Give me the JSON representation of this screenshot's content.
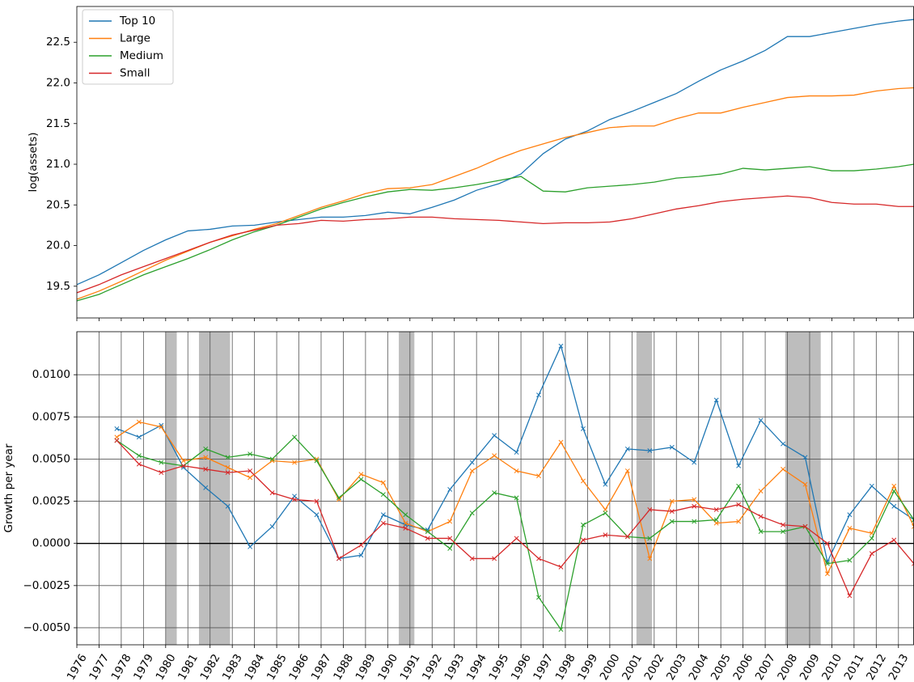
{
  "chart_data": [
    {
      "type": "line",
      "ylabel": "log(assets)",
      "legend": "upper left",
      "grid": false,
      "x": [
        1976,
        1977,
        1978,
        1979,
        1980,
        1981,
        1982,
        1983,
        1984,
        1985,
        1986,
        1987,
        1988,
        1989,
        1990,
        1991,
        1992,
        1993,
        1994,
        1995,
        1996,
        1997,
        1998,
        1999,
        2000,
        2001,
        2002,
        2003,
        2004,
        2005,
        2006,
        2007,
        2008,
        2009,
        2010,
        2011,
        2012,
        2013,
        2013.7
      ],
      "xlim": [
        1976,
        2013.7
      ],
      "xticks": [
        1976,
        1977,
        1978,
        1979,
        1980,
        1981,
        1982,
        1983,
        1984,
        1985,
        1986,
        1987,
        1988,
        1989,
        1990,
        1991,
        1992,
        1993,
        1994,
        1995,
        1996,
        1997,
        1998,
        1999,
        2000,
        2001,
        2002,
        2003,
        2004,
        2005,
        2006,
        2007,
        2008,
        2009,
        2010,
        2011,
        2012,
        2013
      ],
      "ylim": [
        19.11,
        22.94
      ],
      "yticks": [
        19.5,
        {
          "value": 20,
          "label": "20.0"
        },
        20.5,
        {
          "value": 21,
          "label": "21.0"
        },
        21.5,
        {
          "value": 22,
          "label": "22.0"
        },
        22.5
      ],
      "series": [
        {
          "name": "Top 10",
          "color": "#1f77b4",
          "values": [
            19.52,
            19.64,
            19.79,
            19.94,
            20.07,
            20.18,
            20.2,
            20.24,
            20.25,
            20.29,
            20.32,
            20.35,
            20.35,
            20.37,
            20.41,
            20.39,
            20.47,
            20.56,
            20.68,
            20.76,
            20.88,
            21.13,
            21.31,
            21.41,
            21.55,
            21.65,
            21.76,
            21.87,
            22.02,
            22.16,
            22.27,
            22.4,
            22.57,
            22.57,
            22.62,
            22.67,
            22.72,
            22.76,
            22.78
          ]
        },
        {
          "name": "Large",
          "color": "#ff7f0e",
          "values": [
            19.34,
            19.44,
            19.56,
            19.69,
            19.82,
            19.93,
            20.04,
            20.12,
            20.2,
            20.27,
            20.37,
            20.47,
            20.55,
            20.64,
            20.7,
            20.71,
            20.75,
            20.85,
            20.95,
            21.07,
            21.17,
            21.25,
            21.33,
            21.39,
            21.45,
            21.47,
            21.47,
            21.56,
            21.63,
            21.63,
            21.7,
            21.76,
            21.82,
            21.84,
            21.84,
            21.85,
            21.9,
            21.93,
            21.94
          ]
        },
        {
          "name": "Medium",
          "color": "#2ca02c",
          "values": [
            19.32,
            19.4,
            19.52,
            19.64,
            19.74,
            19.84,
            19.95,
            20.07,
            20.17,
            20.25,
            20.35,
            20.45,
            20.53,
            20.6,
            20.66,
            20.69,
            20.68,
            20.71,
            20.75,
            20.8,
            20.85,
            20.67,
            20.66,
            20.71,
            20.73,
            20.75,
            20.78,
            20.83,
            20.85,
            20.88,
            20.95,
            20.93,
            20.95,
            20.97,
            20.92,
            20.92,
            20.94,
            20.97,
            21.0
          ]
        },
        {
          "name": "Small",
          "color": "#d62728",
          "values": [
            19.42,
            19.52,
            19.64,
            19.74,
            19.84,
            19.94,
            20.04,
            20.13,
            20.19,
            20.25,
            20.27,
            20.31,
            20.3,
            20.32,
            20.33,
            20.35,
            20.35,
            20.33,
            20.32,
            20.31,
            20.29,
            20.27,
            20.28,
            20.28,
            20.29,
            20.33,
            20.39,
            20.45,
            20.49,
            20.54,
            20.57,
            20.59,
            20.61,
            20.59,
            20.53,
            20.51,
            20.51,
            20.48,
            20.48
          ]
        }
      ]
    },
    {
      "type": "line",
      "ylabel": "Growth per year",
      "grid": true,
      "marker": "x",
      "x": [
        1977.8,
        1978.8,
        1979.8,
        1980.8,
        1981.8,
        1982.8,
        1983.8,
        1984.8,
        1985.8,
        1986.8,
        1987.8,
        1988.8,
        1989.8,
        1990.8,
        1991.8,
        1992.8,
        1993.8,
        1994.8,
        1995.8,
        1996.8,
        1997.8,
        1998.8,
        1999.8,
        2000.8,
        2001.8,
        2002.8,
        2003.8,
        2004.8,
        2005.8,
        2006.8,
        2007.8,
        2008.8,
        2009.8,
        2010.8,
        2011.8,
        2012.8,
        2013.7
      ],
      "xlim": [
        1976,
        2013.7
      ],
      "xticks": [
        1976,
        1977,
        1978,
        1979,
        1980,
        1981,
        1982,
        1983,
        1984,
        1985,
        1986,
        1987,
        1988,
        1989,
        1990,
        1991,
        1992,
        1993,
        1994,
        1995,
        1996,
        1997,
        1998,
        1999,
        2000,
        2001,
        2002,
        2003,
        2004,
        2005,
        2006,
        2007,
        2008,
        2009,
        2010,
        2011,
        2012,
        2013
      ],
      "ylim": [
        -0.00601,
        0.01255
      ],
      "yticks": [
        {
          "value": -0.005,
          "label": "−0.0050"
        },
        {
          "value": -0.0025,
          "label": "−0.0025"
        },
        {
          "value": 0,
          "label": "0.0000"
        },
        {
          "value": 0.0025,
          "label": "0.0025"
        },
        {
          "value": 0.005,
          "label": "0.0050"
        },
        {
          "value": 0.0075,
          "label": "0.0075"
        },
        {
          "value": 0.01,
          "label": "0.0100"
        }
      ],
      "shaded_spans": [
        [
          1980,
          1980.5
        ],
        [
          1981.5,
          1982.9
        ],
        [
          1990.5,
          1991.2
        ],
        [
          2001.2,
          2001.9
        ],
        [
          2007.9,
          2009.5
        ]
      ],
      "series": [
        {
          "name": "Top 10",
          "color": "#1f77b4",
          "values": [
            0.0068,
            0.0063,
            0.007,
            0.0045,
            0.0033,
            0.0022,
            -0.0002,
            0.001,
            0.0028,
            0.0017,
            -0.0009,
            -0.0007,
            0.0017,
            0.0011,
            0.0008,
            0.0032,
            0.0048,
            0.0064,
            0.0054,
            0.0088,
            0.0117,
            0.0068,
            0.0035,
            0.0056,
            0.0055,
            0.0057,
            0.0048,
            0.0085,
            0.0046,
            0.0073,
            0.0059,
            0.0051,
            -0.0011,
            0.0017,
            0.0034,
            0.0022,
            0.0014
          ]
        },
        {
          "name": "Large",
          "color": "#ff7f0e",
          "values": [
            0.0063,
            0.0072,
            0.0069,
            0.0049,
            0.0051,
            0.0045,
            0.0039,
            0.0049,
            0.0048,
            0.005,
            0.0026,
            0.0041,
            0.0036,
            0.0012,
            0.0007,
            0.0013,
            0.0043,
            0.0052,
            0.0043,
            0.004,
            0.006,
            0.0037,
            0.002,
            0.0043,
            -0.0009,
            0.0025,
            0.0026,
            0.0012,
            0.0013,
            0.0031,
            0.0044,
            0.0035,
            -0.0018,
            0.0009,
            0.0006,
            0.0034,
            0.001
          ]
        },
        {
          "name": "Medium",
          "color": "#2ca02c",
          "values": [
            0.0061,
            0.0052,
            0.0048,
            0.0046,
            0.0056,
            0.0051,
            0.0053,
            0.005,
            0.0063,
            0.0049,
            0.0027,
            0.0038,
            0.0029,
            0.0017,
            0.0007,
            -0.0003,
            0.0018,
            0.003,
            0.0027,
            -0.0032,
            -0.0051,
            0.0011,
            0.0018,
            0.0004,
            0.0003,
            0.0013,
            0.0013,
            0.0014,
            0.0034,
            0.0007,
            0.0007,
            0.001,
            -0.0012,
            -0.001,
            0.0003,
            0.0031,
            0.0014
          ]
        },
        {
          "name": "Small",
          "color": "#d62728",
          "values": [
            0.0061,
            0.0047,
            0.0042,
            0.0046,
            0.0044,
            0.0042,
            0.0043,
            0.003,
            0.0026,
            0.0025,
            -0.0009,
            -0.0001,
            0.0012,
            0.0009,
            0.0003,
            0.0003,
            -0.0009,
            -0.0009,
            0.0003,
            -0.0009,
            -0.0014,
            0.0002,
            0.0005,
            0.0004,
            0.002,
            0.0019,
            0.0022,
            0.002,
            0.0023,
            0.0016,
            0.0011,
            0.001,
            0,
            -0.0031,
            -0.0006,
            0.0002,
            -0.0012
          ]
        }
      ]
    }
  ]
}
